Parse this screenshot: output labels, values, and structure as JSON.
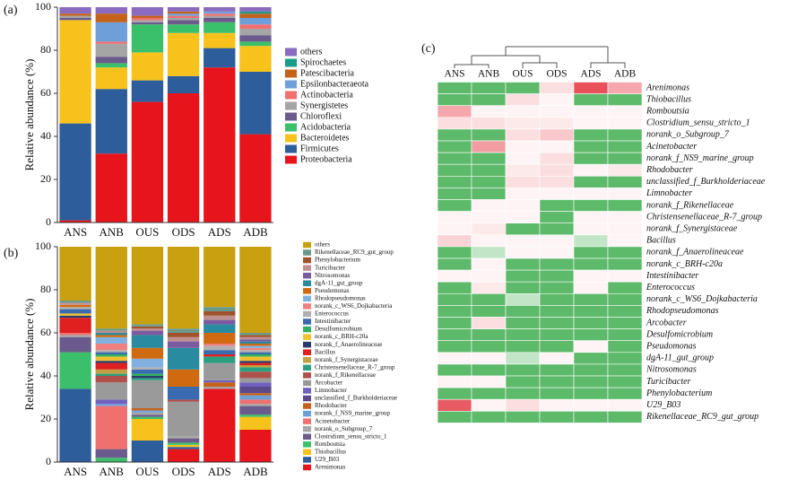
{
  "chart_data": [
    {
      "type": "stacked_bar",
      "panel_label": "(a)",
      "y_label": "Relative abundance (%)",
      "categories": [
        "ANS",
        "ANB",
        "OUS",
        "ODS",
        "ADS",
        "ADB"
      ],
      "ylim": [
        0,
        100
      ],
      "yticks": [
        0,
        20,
        40,
        60,
        80,
        100
      ],
      "series": [
        {
          "name": "Proteobacteria",
          "color": "#e8141c",
          "values": [
            1,
            32,
            56,
            60,
            72,
            41
          ]
        },
        {
          "name": "Firmicutes",
          "color": "#2e5d9b",
          "values": [
            45,
            30,
            10,
            8,
            9,
            29
          ]
        },
        {
          "name": "Bacteroidetes",
          "color": "#f7c21b",
          "values": [
            48,
            10,
            13,
            20,
            7,
            12
          ]
        },
        {
          "name": "Acidobacteria",
          "color": "#3cbf6a",
          "values": [
            0,
            2,
            13,
            4,
            5,
            2
          ]
        },
        {
          "name": "Chloroflexi",
          "color": "#6b5a8c",
          "values": [
            1,
            3,
            1,
            2,
            2,
            3
          ]
        },
        {
          "name": "Synergistetes",
          "color": "#a5a5a5",
          "values": [
            1,
            6,
            1,
            1,
            1,
            3
          ]
        },
        {
          "name": "Actinobacteria",
          "color": "#f07070",
          "values": [
            0,
            1,
            1,
            1,
            1,
            2
          ]
        },
        {
          "name": "Epsilonbacteraeota",
          "color": "#6f9fd8",
          "values": [
            0,
            9,
            0,
            1,
            1,
            3
          ]
        },
        {
          "name": "Patescibacteria",
          "color": "#c4621a",
          "values": [
            1,
            4,
            1,
            1,
            0,
            2
          ]
        },
        {
          "name": "Spirochaetes",
          "color": "#1a9c8a",
          "values": [
            0,
            0,
            0,
            0,
            0,
            1
          ]
        },
        {
          "name": "others",
          "color": "#8a6bbf",
          "values": [
            3,
            3,
            4,
            2,
            2,
            2
          ]
        }
      ]
    },
    {
      "type": "stacked_bar",
      "panel_label": "(b)",
      "y_label": "Relative abundance (%)",
      "categories": [
        "ANS",
        "ANB",
        "OUS",
        "ODS",
        "ADS",
        "ADB"
      ],
      "ylim": [
        0,
        100
      ],
      "yticks": [
        0,
        20,
        40,
        60,
        80,
        100
      ],
      "series": [
        {
          "name": "Arenimonas",
          "color": "#e8141c",
          "values": [
            0,
            0,
            0,
            6,
            34,
            15
          ]
        },
        {
          "name": "U29_B03",
          "color": "#2e5d9b",
          "values": [
            34,
            0,
            10,
            1,
            0,
            0
          ]
        },
        {
          "name": "Thiobacillus",
          "color": "#f7c21b",
          "values": [
            0,
            0,
            10,
            1,
            0,
            6
          ]
        },
        {
          "name": "Romboutsia",
          "color": "#3cbf6a",
          "values": [
            17,
            2,
            1,
            1,
            0,
            1
          ]
        },
        {
          "name": "Clostridium_sensu_stricto_1",
          "color": "#6b5a8c",
          "values": [
            7,
            4,
            1,
            2,
            0,
            4
          ]
        },
        {
          "name": "norank_o_Subgroup_7",
          "color": "#a5a5a5",
          "values": [
            1,
            0,
            1,
            1,
            1,
            1
          ]
        },
        {
          "name": "Acinetobacter",
          "color": "#f07070",
          "values": [
            1,
            20,
            0,
            0,
            0,
            2
          ]
        },
        {
          "name": "norank_f_NS9_marine_group",
          "color": "#6f9fd8",
          "values": [
            0,
            1,
            1,
            0,
            0,
            2
          ]
        },
        {
          "name": "Rhodobacter",
          "color": "#c4621a",
          "values": [
            0,
            0,
            1,
            0,
            2,
            1
          ]
        },
        {
          "name": "unclassified_f_Burkholderiaceae",
          "color": "#5a4a8a",
          "values": [
            0,
            0,
            0,
            0,
            0,
            3
          ]
        },
        {
          "name": "Limnobacter",
          "color": "#7060c0",
          "values": [
            0,
            2,
            0,
            0,
            1,
            2
          ]
        },
        {
          "name": "Arcobacter",
          "color": "#9a9a9a",
          "values": [
            0,
            8,
            13,
            16,
            8,
            2
          ]
        },
        {
          "name": "norank_f_Rikenellaceae",
          "color": "#b0504a",
          "values": [
            0,
            3,
            0,
            1,
            0,
            3
          ]
        },
        {
          "name": "Christensenellaceae_R-7_group",
          "color": "#2aa080",
          "values": [
            0,
            1,
            1,
            0,
            3,
            2
          ]
        },
        {
          "name": "norank_f_Synergistaceae",
          "color": "#c0a040",
          "values": [
            0,
            2,
            0,
            0,
            0,
            1
          ]
        },
        {
          "name": "Bacillus",
          "color": "#e02020",
          "values": [
            7,
            3,
            0,
            0,
            1,
            1
          ]
        },
        {
          "name": "norank_f_Anaerolineaceae",
          "color": "#2a3a6a",
          "values": [
            1,
            1,
            1,
            0,
            0,
            1
          ]
        },
        {
          "name": "norank_c_BRH-c20a",
          "color": "#f0c030",
          "values": [
            1,
            2,
            0,
            0,
            0,
            2
          ]
        },
        {
          "name": "Desulfomicrobium",
          "color": "#30b060",
          "values": [
            0,
            1,
            1,
            0,
            0,
            1
          ]
        },
        {
          "name": "Intestinibacter",
          "color": "#3a6ab0",
          "values": [
            2,
            1,
            2,
            6,
            2,
            1
          ]
        },
        {
          "name": "Enterococcus",
          "color": "#b0b0b0",
          "values": [
            1,
            1,
            1,
            0,
            2,
            1
          ]
        },
        {
          "name": "norank_c_WS6_Dojkabacteria",
          "color": "#f08080",
          "values": [
            0,
            3,
            0,
            0,
            1,
            1
          ]
        },
        {
          "name": "Rhodopseudomonas",
          "color": "#80b0e0",
          "values": [
            0,
            3,
            4,
            0,
            0,
            1
          ]
        },
        {
          "name": "Pseudomonas",
          "color": "#d06a10",
          "values": [
            1,
            1,
            5,
            8,
            5,
            1
          ]
        },
        {
          "name": "dgA-11_gut_group",
          "color": "#2a8aa0",
          "values": [
            0,
            1,
            6,
            10,
            4,
            1
          ]
        },
        {
          "name": "Nitrosomonas",
          "color": "#7a5aa0",
          "values": [
            0,
            0,
            2,
            3,
            2,
            1
          ]
        },
        {
          "name": "Turicibacter",
          "color": "#c09090",
          "values": [
            1,
            1,
            1,
            2,
            2,
            1
          ]
        },
        {
          "name": "Phenylobacterium",
          "color": "#a0522d",
          "values": [
            0,
            0,
            1,
            2,
            2,
            1
          ]
        },
        {
          "name": "Rikenellaceae_RC9_gut_group",
          "color": "#6a9a8a",
          "values": [
            1,
            1,
            1,
            2,
            2,
            1
          ]
        },
        {
          "name": "others",
          "color": "#c9a010",
          "values": [
            25,
            38,
            36,
            38,
            28,
            40
          ]
        }
      ]
    },
    {
      "type": "heatmap",
      "panel_label": "(c)",
      "x": [
        "ANS",
        "ANB",
        "OUS",
        "ODS",
        "ADS",
        "ADB"
      ],
      "zlim": [
        -0.8,
        1.6
      ],
      "colors": [
        "#5dba6a",
        "#ffffff",
        "#e8505a"
      ],
      "y": [
        "Arenimonas",
        "Thiobacillus",
        "Romboutsia",
        "Clostridium_sensu_stricto_1",
        "norank_o_Subgroup_7",
        "Acinetobacter",
        "norank_f_NS9_marine_group",
        "Rhodobacter",
        "unclassified_f_Burkholderiaceae",
        "Limnobacter",
        "norank_f_Rikenellaceae",
        "Christensenellaceae_R-7_group",
        "norank_f_Synergistaceae",
        "Bacillus",
        "norank_f_Anaerolineaceae",
        "norank_c_BRH-c20a",
        "Intestinibacter",
        "Enterococcus",
        "norank_c_WS6_Dojkabacteria",
        "Rhodopseudomonas",
        "Arcobacter",
        "Desulfomicrobium",
        "Pseudomonas",
        "dgA-11_gut_group",
        "Nitrosomonas",
        "Turicibacter",
        "Phenylobacterium",
        "U29_B03",
        "Rikenellaceae_RC9_gut_group"
      ],
      "values": [
        [
          -0.8,
          -0.8,
          -0.8,
          0.3,
          1.6,
          0.8
        ],
        [
          -0.8,
          -0.8,
          0.3,
          0.1,
          -0.8,
          -0.8
        ],
        [
          0.8,
          0.1,
          0.1,
          0.1,
          0.1,
          0.1
        ],
        [
          0.3,
          0.3,
          0.2,
          0.2,
          0.1,
          0.1
        ],
        [
          -0.8,
          -0.8,
          0.3,
          0.5,
          -0.8,
          -0.8
        ],
        [
          -0.8,
          0.9,
          0.1,
          0.1,
          -0.8,
          -0.8
        ],
        [
          -0.8,
          -0.8,
          0.1,
          0.3,
          -0.8,
          -0.8
        ],
        [
          -0.8,
          -0.8,
          0.2,
          0.3,
          0.1,
          0.2
        ],
        [
          -0.8,
          -0.8,
          0.3,
          0.3,
          -0.8,
          -0.8
        ],
        [
          -0.8,
          -0.8,
          0.1,
          0.1,
          0.1,
          0.1
        ],
        [
          -0.8,
          0.1,
          0.1,
          -0.8,
          -0.8,
          -0.8
        ],
        [
          0.1,
          0.1,
          0.1,
          -0.8,
          0.1,
          0.1
        ],
        [
          0.1,
          0.2,
          -0.8,
          -0.8,
          0.1,
          0.1
        ],
        [
          0.4,
          0.1,
          0.1,
          0.1,
          -0.3,
          0.1
        ],
        [
          -0.8,
          -0.3,
          0.1,
          0.1,
          -0.8,
          -0.8
        ],
        [
          -0.8,
          0.1,
          -0.8,
          -0.8,
          -0.8,
          -0.8
        ],
        [
          0.1,
          0.1,
          -0.8,
          -0.8,
          0.1,
          0.1
        ],
        [
          -0.8,
          0.2,
          -0.8,
          -0.8,
          0.1,
          -0.8
        ],
        [
          -0.8,
          -0.8,
          -0.3,
          -0.8,
          -0.8,
          -0.8
        ],
        [
          -0.8,
          -0.8,
          -0.8,
          -0.8,
          -0.8,
          -0.8
        ],
        [
          -0.8,
          0.3,
          -0.8,
          -0.8,
          -0.8,
          -0.8
        ],
        [
          -0.8,
          -0.8,
          -0.8,
          -0.8,
          -0.8,
          -0.8
        ],
        [
          -0.8,
          -0.8,
          -0.8,
          -0.8,
          0.1,
          -0.8
        ],
        [
          0.1,
          0.1,
          -0.3,
          0.1,
          -0.8,
          -0.8
        ],
        [
          -0.8,
          -0.8,
          -0.8,
          -0.8,
          -0.8,
          -0.8
        ],
        [
          0.1,
          0.1,
          -0.8,
          -0.8,
          -0.8,
          -0.8
        ],
        [
          -0.8,
          -0.8,
          -0.8,
          -0.8,
          -0.8,
          -0.8
        ],
        [
          1.5,
          0.1,
          0.3,
          0.1,
          0.1,
          0.1
        ],
        [
          -0.8,
          -0.8,
          -0.8,
          -0.8,
          -0.8,
          -0.8
        ]
      ]
    }
  ]
}
